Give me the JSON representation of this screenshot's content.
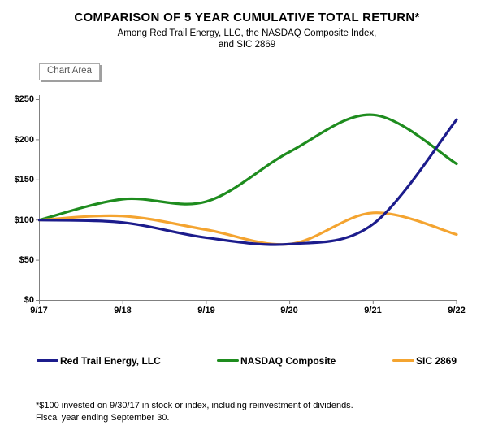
{
  "header": {
    "title": "COMPARISON OF 5 YEAR CUMULATIVE TOTAL RETURN*",
    "subtitle_line1": "Among Red Trail Energy, LLC, the NASDAQ Composite Index,",
    "subtitle_line2": "and SIC 2869"
  },
  "chart_area_label": "Chart Area",
  "chart_data": {
    "type": "line",
    "title": "COMPARISON OF 5 YEAR CUMULATIVE TOTAL RETURN*",
    "x_tick_labels": [
      "9/17",
      "9/18",
      "9/19",
      "9/20",
      "9/21",
      "9/22"
    ],
    "y_tick_labels": [
      "$250",
      "$200",
      "$150",
      "$100",
      "$50",
      "$0"
    ],
    "ylim": [
      0,
      250
    ],
    "y_step": 50,
    "grid": false,
    "smoothed_lines": true,
    "legend_position": "bottom",
    "series": [
      {
        "name": "Red Trail Energy, LLC",
        "color": "#1c1c8c",
        "values": [
          100,
          97,
          78,
          70,
          95,
          225
        ]
      },
      {
        "name": "NASDAQ Composite",
        "color": "#1e8c1e",
        "values": [
          100,
          126,
          123,
          185,
          231,
          170
        ]
      },
      {
        "name": "SIC 2869",
        "color": "#f4a430",
        "values": [
          100,
          105,
          88,
          70,
          109,
          82
        ]
      }
    ],
    "axis_color": "#808080"
  },
  "footnote": {
    "line1": "*$100 invested on 9/30/17 in stock or index, including reinvestment of dividends.",
    "line2": "Fiscal year ending September 30."
  }
}
